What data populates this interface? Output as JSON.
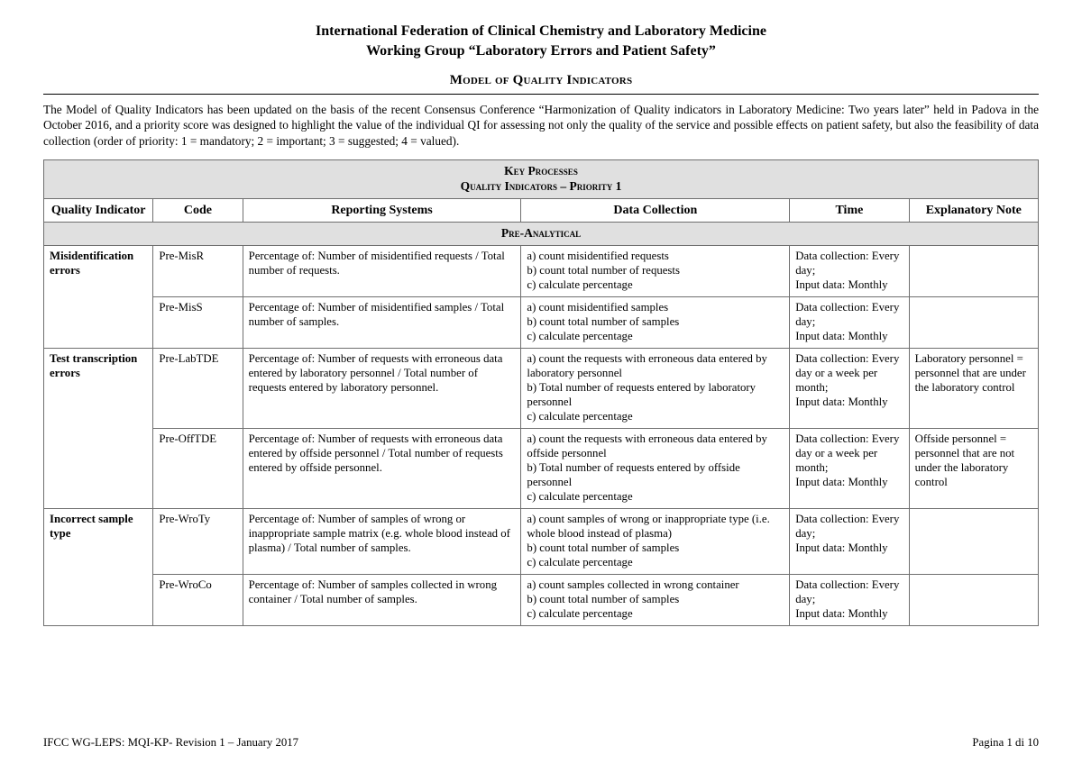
{
  "header": {
    "line1": "International Federation of Clinical Chemistry and Laboratory Medicine",
    "line2": "Working Group “Laboratory Errors and Patient Safety”",
    "section": "Model of Quality Indicators"
  },
  "intro": "The Model of Quality Indicators has been updated on the basis of the recent Consensus Conference “Harmonization of Quality indicators in Laboratory Medicine: Two years later” held in Padova in the October 2016, and a priority score was designed to highlight the value of the individual QI for assessing not only the quality of the service and possible effects on patient safety, but also the feasibility of data collection (order of priority: 1 = mandatory; 2 = important; 3 = suggested; 4 = valued).",
  "table": {
    "band_top_line1": "Key Processes",
    "band_top_line2": "Quality Indicators – Priority 1",
    "columns": {
      "qi": "Quality Indicator",
      "code": "Code",
      "reporting": "Reporting Systems",
      "data": "Data Collection",
      "time": "Time",
      "note": "Explanatory Note"
    },
    "band_section": "Pre-Analytical",
    "groups": [
      {
        "label": "Misidentification errors",
        "rows": [
          {
            "code": "Pre-MisR",
            "reporting": "Percentage of: Number of misidentified requests / Total number of requests.",
            "data": "a) count misidentified requests\nb) count total number of requests\nc) calculate percentage",
            "time": "Data collection: Every day;\nInput data: Monthly",
            "note": ""
          },
          {
            "code": "Pre-MisS",
            "reporting": "Percentage of: Number of misidentified samples / Total number of samples.",
            "data": "a) count misidentified samples\nb) count total number of samples\nc) calculate percentage",
            "time": "Data collection: Every day;\nInput data: Monthly",
            "note": ""
          }
        ]
      },
      {
        "label": "Test transcription errors",
        "rows": [
          {
            "code": "Pre-LabTDE",
            "reporting": "Percentage of: Number of requests with erroneous data entered by laboratory personnel / Total number of requests entered by laboratory personnel.",
            "data": "a) count the requests with erroneous data entered by laboratory personnel\nb) Total number of requests entered by laboratory personnel\nc) calculate percentage",
            "time": "Data collection: Every day or a week per month;\nInput data: Monthly",
            "note": "Laboratory personnel = personnel that are under the laboratory control"
          },
          {
            "code": "Pre-OffTDE",
            "reporting": "Percentage of: Number of requests with erroneous data entered by offside personnel / Total number of requests entered by offside personnel.",
            "data": "a) count the requests with erroneous data entered by offside personnel\nb) Total number of requests entered by offside personnel\nc) calculate percentage",
            "time": "Data collection: Every day or a week per month;\nInput data: Monthly",
            "note": "Offside personnel = personnel that are not under the laboratory control"
          }
        ]
      },
      {
        "label": "Incorrect sample type",
        "rows": [
          {
            "code": "Pre-WroTy",
            "reporting": "Percentage of: Number of samples of wrong or inappropriate sample matrix (e.g. whole blood instead of plasma) / Total number of samples.",
            "data": "a) count samples of wrong or inappropriate type (i.e. whole blood instead of plasma)\nb) count total number of samples\nc) calculate percentage",
            "time": "Data collection: Every day;\nInput data: Monthly",
            "note": ""
          },
          {
            "code": "Pre-WroCo",
            "reporting": "Percentage of: Number of samples collected in wrong container / Total number of samples.",
            "data": "a) count samples collected in wrong container\nb) count total number of samples\nc) calculate percentage",
            "time": "Data collection: Every day;\nInput data: Monthly",
            "note": ""
          }
        ]
      }
    ]
  },
  "footer": {
    "left": "IFCC WG-LEPS: MQI-KP- Revision 1 –  January 2017",
    "right": "Pagina 1 di 10"
  }
}
